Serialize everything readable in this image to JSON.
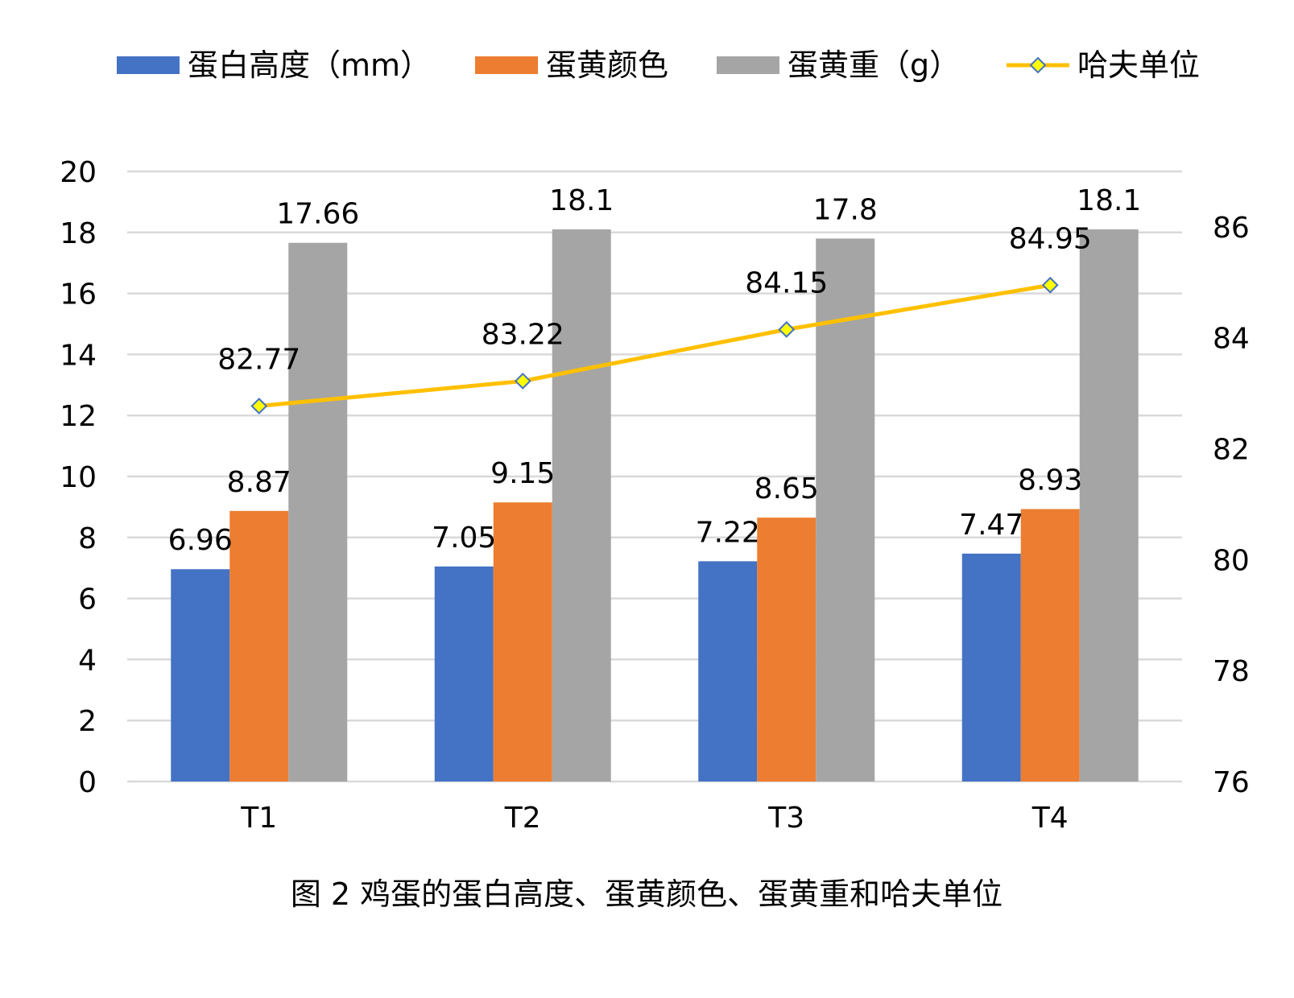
{
  "chart_data": {
    "type": "bar",
    "categories": [
      "T1",
      "T2",
      "T3",
      "T4"
    ],
    "series": [
      {
        "name": "蛋白高度（mm）",
        "kind": "bar",
        "axis": "left",
        "color": "#4472C4",
        "values": [
          6.96,
          7.05,
          7.22,
          7.47
        ]
      },
      {
        "name": "蛋黄颜色",
        "kind": "bar",
        "axis": "left",
        "color": "#ED7D31",
        "values": [
          8.87,
          9.15,
          8.65,
          8.93
        ]
      },
      {
        "name": "蛋黄重（g）",
        "kind": "bar",
        "axis": "left",
        "color": "#A5A5A5",
        "values": [
          17.66,
          18.1,
          17.8,
          18.1
        ]
      },
      {
        "name": "哈夫单位",
        "kind": "line",
        "axis": "right",
        "color": "#FFC000",
        "marker_color": "#FFFF00",
        "values": [
          82.77,
          83.22,
          84.15,
          84.95
        ]
      }
    ],
    "y_left": {
      "min": 0,
      "max": 20,
      "step": 2,
      "ticks": [
        "0",
        "2",
        "4",
        "6",
        "8",
        "10",
        "12",
        "14",
        "16",
        "18",
        "20"
      ]
    },
    "y_right": {
      "min": 76,
      "max": 87,
      "ticks": [
        "76",
        "78",
        "80",
        "82",
        "84",
        "86"
      ]
    },
    "grid": true,
    "legend_position": "top",
    "caption": "图 2  鸡蛋的蛋白高度、蛋黄颜色、蛋黄重和哈夫单位"
  }
}
